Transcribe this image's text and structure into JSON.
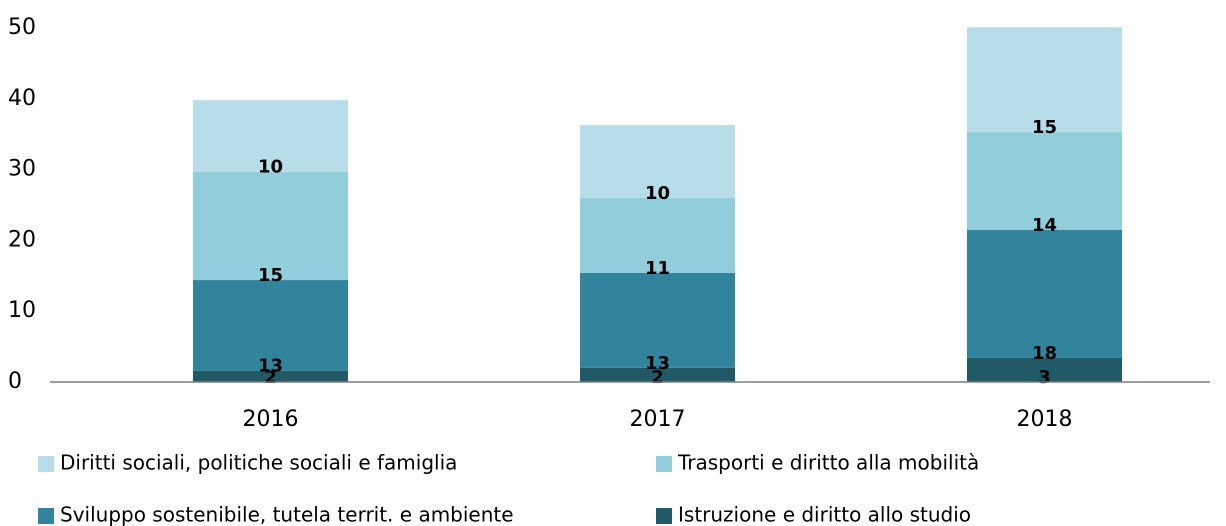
{
  "chart_data": {
    "type": "stacked_bar",
    "categories": [
      "2016",
      "2017",
      "2018"
    ],
    "series": [
      {
        "name": "Diritti sociali, politiche sociali e famiglia",
        "color": "#b7dee8",
        "values": [
          10.1,
          10.3,
          14.8
        ],
        "value_labels": [
          "10",
          "10",
          "15"
        ]
      },
      {
        "name": "Trasporti e diritto alla mobilità",
        "color": "#92cddc",
        "values": [
          15.3,
          10.6,
          13.8
        ],
        "value_labels": [
          "15",
          "11",
          "14"
        ]
      },
      {
        "name": "Sviluppo sostenibile, tutela territ. e ambiente",
        "color": "#31849b",
        "values": [
          12.8,
          13.4,
          18.1
        ],
        "value_labels": [
          "13",
          "13",
          "18"
        ]
      },
      {
        "name": "Istruzione e diritto allo studio",
        "color": "#215967",
        "values": [
          1.6,
          2.0,
          3.4
        ],
        "value_labels": [
          "2",
          "2",
          "3"
        ]
      }
    ],
    "ylim": [
      0,
      50
    ],
    "yticks": [
      0,
      10,
      20,
      30,
      40,
      50
    ],
    "grid": false
  }
}
